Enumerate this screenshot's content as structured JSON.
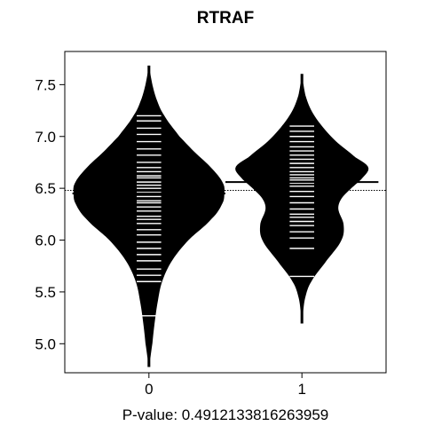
{
  "chart_data": {
    "type": "beanplot",
    "title": "RTRAF",
    "xlabel": "P-value: 0.4912133816263959",
    "ylabel": "",
    "ylim": [
      4.72,
      7.82
    ],
    "xlim": [
      0.45,
      2.55
    ],
    "yticks": [
      5.0,
      5.5,
      6.0,
      6.5,
      7.0,
      7.5
    ],
    "ytick_labels": [
      "5.0",
      "5.5",
      "6.0",
      "6.5",
      "7.0",
      "7.5"
    ],
    "categories": [
      "0",
      "1"
    ],
    "overall_mean": 6.48,
    "grid": false,
    "colors": {
      "bean": "#000000",
      "rug": "#ffffff",
      "frame": "#000000"
    },
    "series": [
      {
        "category": "0",
        "mean": 6.45,
        "range": [
          4.78,
          7.68
        ],
        "density": [
          [
            4.78,
            0.0
          ],
          [
            4.9,
            0.02
          ],
          [
            5.0,
            0.04
          ],
          [
            5.2,
            0.07
          ],
          [
            5.4,
            0.11
          ],
          [
            5.6,
            0.17
          ],
          [
            5.8,
            0.3
          ],
          [
            6.0,
            0.52
          ],
          [
            6.2,
            0.82
          ],
          [
            6.35,
            0.97
          ],
          [
            6.45,
            1.0
          ],
          [
            6.55,
            0.98
          ],
          [
            6.7,
            0.82
          ],
          [
            6.85,
            0.6
          ],
          [
            7.0,
            0.4
          ],
          [
            7.2,
            0.2
          ],
          [
            7.35,
            0.1
          ],
          [
            7.5,
            0.04
          ],
          [
            7.68,
            0.0
          ]
        ],
        "observations": [
          5.27,
          5.6,
          5.66,
          5.72,
          5.8,
          5.86,
          5.92,
          5.98,
          6.05,
          6.1,
          6.16,
          6.2,
          6.23,
          6.28,
          6.32,
          6.36,
          6.38,
          6.42,
          6.46,
          6.5,
          6.53,
          6.56,
          6.6,
          6.62,
          6.66,
          6.7,
          6.75,
          6.82,
          6.88,
          6.95,
          7.02,
          7.08,
          7.15,
          7.2
        ]
      },
      {
        "category": "1",
        "mean": 6.56,
        "range": [
          5.2,
          7.6
        ],
        "density": [
          [
            5.2,
            0.0
          ],
          [
            5.3,
            0.01
          ],
          [
            5.45,
            0.04
          ],
          [
            5.6,
            0.12
          ],
          [
            5.8,
            0.32
          ],
          [
            6.0,
            0.52
          ],
          [
            6.15,
            0.55
          ],
          [
            6.3,
            0.48
          ],
          [
            6.4,
            0.52
          ],
          [
            6.5,
            0.65
          ],
          [
            6.6,
            0.8
          ],
          [
            6.7,
            0.88
          ],
          [
            6.8,
            0.7
          ],
          [
            6.95,
            0.45
          ],
          [
            7.1,
            0.26
          ],
          [
            7.25,
            0.12
          ],
          [
            7.4,
            0.04
          ],
          [
            7.6,
            0.0
          ]
        ],
        "observations": [
          5.65,
          5.92,
          6.02,
          6.08,
          6.14,
          6.18,
          6.22,
          6.25,
          6.3,
          6.36,
          6.42,
          6.47,
          6.52,
          6.55,
          6.58,
          6.6,
          6.63,
          6.66,
          6.7,
          6.74,
          6.78,
          6.82,
          6.86,
          6.9,
          6.95,
          7.0,
          7.05,
          7.1
        ]
      }
    ]
  }
}
